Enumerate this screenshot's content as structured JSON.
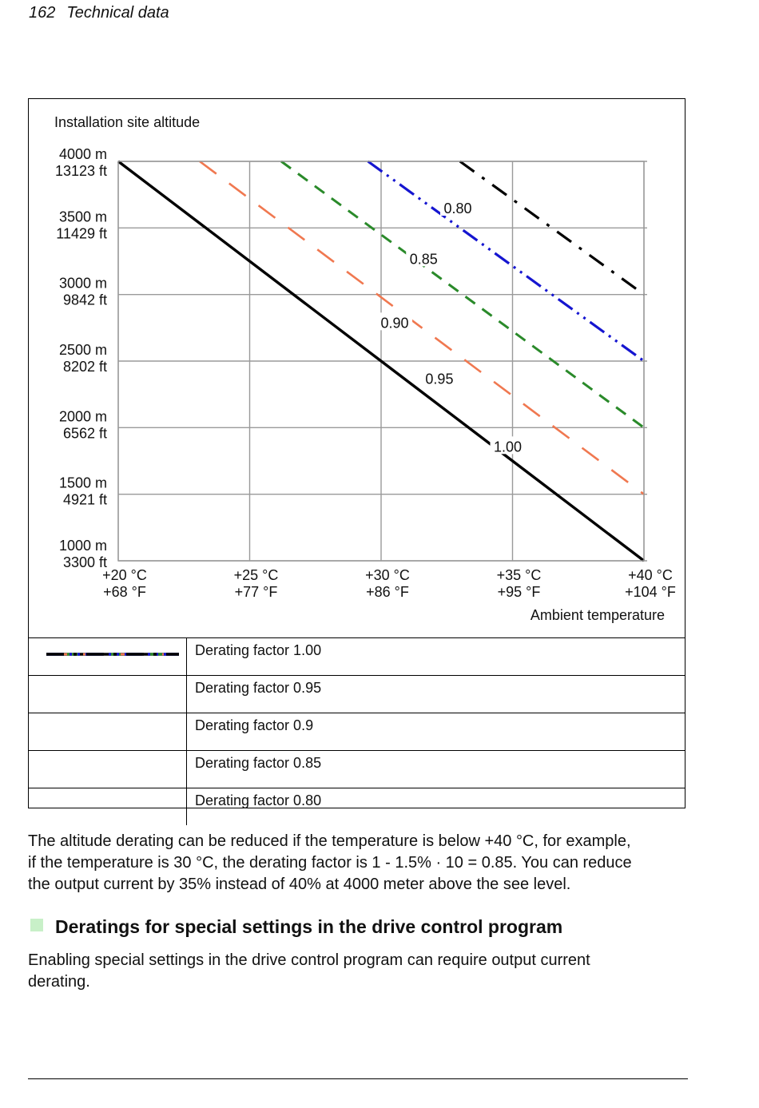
{
  "header": {
    "page_number": "162",
    "section": "Technical data"
  },
  "chart_data": {
    "type": "line",
    "ylabel": "Installation site altitude",
    "xlabel": "Ambient temperature",
    "x_ticks": [
      {
        "value": 20,
        "celsius": "+20 °C",
        "fahrenheit": "+68 °F"
      },
      {
        "value": 25,
        "celsius": "+25 °C",
        "fahrenheit": "+77 °F"
      },
      {
        "value": 30,
        "celsius": "+30 °C",
        "fahrenheit": "+86 °F"
      },
      {
        "value": 35,
        "celsius": "+35 °C",
        "fahrenheit": "+95 °F"
      },
      {
        "value": 40,
        "celsius": "+40 °C",
        "fahrenheit": "+104 °F"
      }
    ],
    "y_ticks": [
      {
        "value": 1000,
        "meters": "1000 m",
        "feet": "3300 ft"
      },
      {
        "value": 1500,
        "meters": "1500 m",
        "feet": "4921 ft"
      },
      {
        "value": 2000,
        "meters": "2000 m",
        "feet": "6562 ft"
      },
      {
        "value": 2500,
        "meters": "2500 m",
        "feet": "8202 ft"
      },
      {
        "value": 3000,
        "meters": "3000 m",
        "feet": "9842 ft"
      },
      {
        "value": 3500,
        "meters": "3500 m",
        "feet": "11429 ft"
      },
      {
        "value": 4000,
        "meters": "4000 m",
        "feet": "13123 ft"
      }
    ],
    "xlim": [
      20,
      40
    ],
    "ylim": [
      1000,
      4000
    ],
    "grid": true,
    "series": [
      {
        "name": "Derating factor 1.00",
        "curve_label": "1.00",
        "color": "#000000",
        "style": "solid",
        "points": [
          [
            20,
            4000
          ],
          [
            40,
            1000
          ]
        ]
      },
      {
        "name": "Derating factor 0.95",
        "curve_label": "0.95",
        "color": "#f07850",
        "style": "long-dash",
        "points": [
          [
            23.1,
            4000
          ],
          [
            40,
            1500
          ]
        ]
      },
      {
        "name": "Derating factor 0.9",
        "curve_label": "0.90",
        "color": "#2a8a2a",
        "style": "dash",
        "points": [
          [
            26.2,
            4000
          ],
          [
            40,
            2000
          ]
        ]
      },
      {
        "name": "Derating factor 0.85",
        "curve_label": "0.85",
        "color": "#1515d0",
        "style": "dash-dot-dot",
        "points": [
          [
            29.5,
            4000
          ],
          [
            40,
            2500
          ]
        ]
      },
      {
        "name": "Derating factor 0.80",
        "curve_label": "0.80",
        "color": "#000000",
        "style": "dash-dot",
        "points": [
          [
            33.0,
            4000
          ],
          [
            40,
            3000
          ]
        ]
      }
    ]
  },
  "legend": [
    {
      "label": "Derating factor 1.00"
    },
    {
      "label": "Derating factor 0.95"
    },
    {
      "label": "Derating factor 0.9"
    },
    {
      "label": "Derating factor 0.85"
    },
    {
      "label": "Derating factor 0.80"
    }
  ],
  "body": {
    "paragraph_lines": [
      "The altitude derating can be reduced if the temperature is below +40 °C, for example,",
      "if the temperature is 30 °C, the derating factor is 1 - 1.5% · 10 = 0.85. You can reduce",
      "the output current by 35% instead of 40% at 4000 meter above the see level."
    ],
    "section_title": "Deratings for special settings in the drive control program",
    "section_lines": [
      "Enabling special settings in the drive control program can require output current",
      "derating."
    ]
  }
}
